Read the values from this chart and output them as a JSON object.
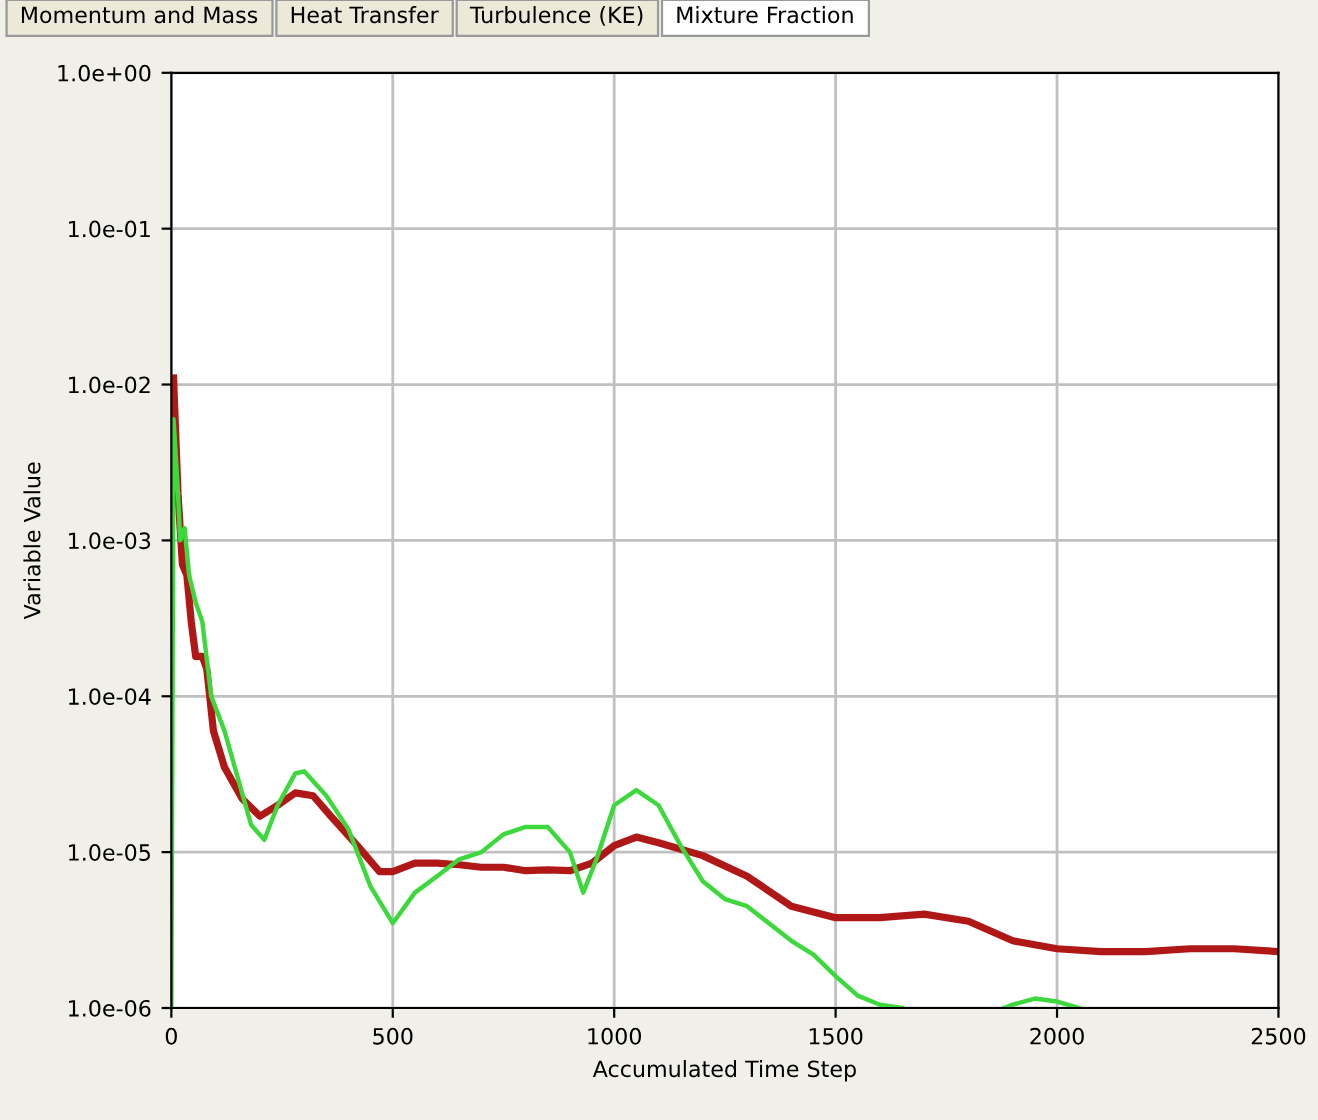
{
  "chart_data": {
    "type": "line",
    "xlabel": "Accumulated Time Step",
    "ylabel": "Variable Value",
    "annotations": [
      "Momentum and Mass",
      "Heat Transfer",
      "Turbulence (KE)",
      "Mixture Fraction"
    ],
    "log": "y",
    "grid": true,
    "legend": false,
    "marker": "none",
    "line_style": "solid",
    "xlim": [
      0,
      2500
    ],
    "xticks": [
      0,
      500,
      1000,
      1500,
      2000,
      2500
    ],
    "ylim": [
      1e-06,
      1
    ],
    "yticks": [
      {
        "value": 1e-06,
        "label": "1.0e-06"
      },
      {
        "value": 1e-05,
        "label": "1.0e-05"
      },
      {
        "value": 0.0001,
        "label": "1.0e-04"
      },
      {
        "value": 0.001,
        "label": "1.0e-03"
      },
      {
        "value": 0.01,
        "label": "1.0e-02"
      },
      {
        "value": 0.1,
        "label": "1.0e-01"
      },
      {
        "value": 1,
        "label": "1.0e+00"
      }
    ],
    "series": [
      {
        "color": "#b01818",
        "x": [
          5,
          15,
          25,
          35,
          45,
          55,
          70,
          80,
          95,
          120,
          160,
          200,
          240,
          280,
          320,
          360,
          420,
          470,
          500,
          550,
          600,
          650,
          700,
          750,
          800,
          850,
          900,
          950,
          1000,
          1050,
          1100,
          1200,
          1300,
          1400,
          1500,
          1600,
          1700,
          1800,
          1900,
          2000,
          2100,
          2200,
          2300,
          2400,
          2500
        ],
        "values": [
          0.011,
          0.002,
          0.0007,
          0.0006,
          0.0003,
          0.00018,
          0.00018,
          0.00015,
          6e-05,
          3.5e-05,
          2.2e-05,
          1.7e-05,
          2e-05,
          2.4e-05,
          2.3e-05,
          1.7e-05,
          1.1e-05,
          7.5e-06,
          7.5e-06,
          8.5e-06,
          8.5e-06,
          8.3e-06,
          8e-06,
          8e-06,
          7.6e-06,
          7.7e-06,
          7.6e-06,
          8.5e-06,
          1.1e-05,
          1.25e-05,
          1.15e-05,
          9.5e-06,
          7e-06,
          4.5e-06,
          3.8e-06,
          3.8e-06,
          4e-06,
          3.6e-06,
          2.7e-06,
          2.4e-06,
          2.3e-06,
          2.3e-06,
          2.4e-06,
          2.4e-06,
          2.3e-06
        ]
      },
      {
        "color": "#3cd83c",
        "x": [
          0,
          5,
          15,
          20,
          30,
          40,
          55,
          70,
          90,
          120,
          150,
          180,
          210,
          240,
          280,
          300,
          350,
          400,
          450,
          500,
          550,
          600,
          650,
          700,
          750,
          800,
          850,
          900,
          930,
          960,
          1000,
          1050,
          1100,
          1150,
          1200,
          1250,
          1300,
          1400,
          1450,
          1500,
          1550,
          1600,
          1650,
          1760,
          1880,
          1900,
          1950,
          2000,
          2050
        ],
        "values": [
          1e-06,
          0.006,
          0.002,
          0.001,
          0.0012,
          0.0006,
          0.0004,
          0.0003,
          0.0001,
          6e-05,
          3e-05,
          1.5e-05,
          1.2e-05,
          2e-05,
          3.2e-05,
          3.3e-05,
          2.3e-05,
          1.4e-05,
          6e-06,
          3.5e-06,
          5.5e-06,
          7e-06,
          9e-06,
          1e-05,
          1.3e-05,
          1.45e-05,
          1.45e-05,
          1e-05,
          5.5e-06,
          9e-06,
          2e-05,
          2.5e-05,
          2e-05,
          1.1e-05,
          6.5e-06,
          5e-06,
          4.5e-06,
          2.7e-06,
          2.2e-06,
          1.6e-06,
          1.2e-06,
          1.05e-06,
          1e-06,
          null,
          1e-06,
          1.05e-06,
          1.15e-06,
          1.1e-06,
          1e-06
        ]
      }
    ]
  }
}
